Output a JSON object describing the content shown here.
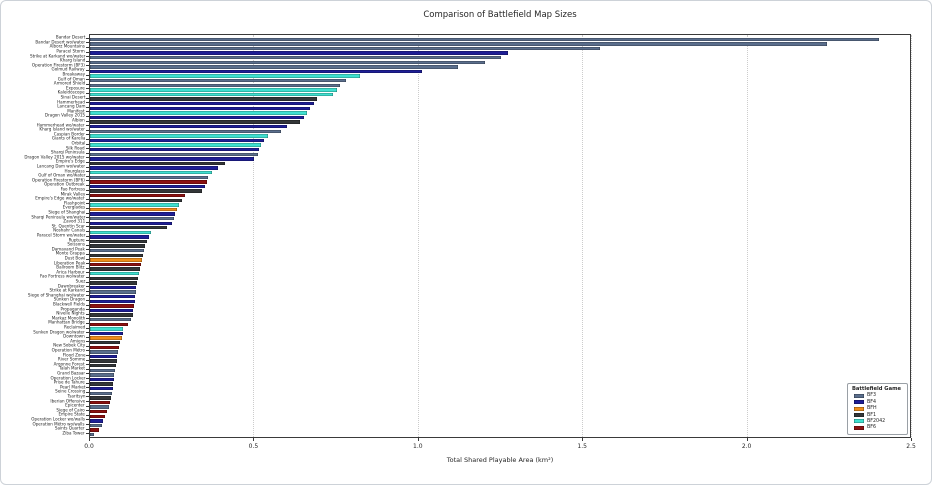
{
  "chart_data": {
    "type": "bar",
    "orientation": "horizontal",
    "title": "Comparison of Battlefield Map Sizes",
    "xlabel": "Total Shared Playable Area (km²)",
    "xlim": [
      0,
      2.5
    ],
    "xticks": [
      0.0,
      0.5,
      1.0,
      1.5,
      2.0,
      2.5
    ],
    "xtick_labels": [
      "0.0",
      "0.5",
      "1.0",
      "1.5",
      "2.0",
      "2.5"
    ],
    "grid": "vertical-dotted",
    "legend": {
      "title": "Battlefield Game",
      "position": "lower right",
      "entries": [
        {
          "label": "BF3",
          "color": "#5A6E8C"
        },
        {
          "label": "BF4",
          "color": "#1E1E96"
        },
        {
          "label": "BFH",
          "color": "#EF8E1B"
        },
        {
          "label": "BF1",
          "color": "#333638"
        },
        {
          "label": "BF2042",
          "color": "#40E0D0"
        },
        {
          "label": "BF6",
          "color": "#8B1010"
        }
      ]
    },
    "bars": [
      {
        "label": "Bandar Desert",
        "game": "BF3",
        "value": 2.4
      },
      {
        "label": "Bandar Desert wo/water",
        "game": "BF3",
        "value": 2.24
      },
      {
        "label": "Alborz Mountains",
        "game": "BF3",
        "value": 1.55
      },
      {
        "label": "Paracel Storm",
        "game": "BF4",
        "value": 1.27
      },
      {
        "label": "Strike at Karkand wo/water",
        "game": "BF3",
        "value": 1.25
      },
      {
        "label": "Kharg Island",
        "game": "BF3",
        "value": 1.2
      },
      {
        "label": "Operation Firestorm (BF3)",
        "game": "BF3",
        "value": 1.12
      },
      {
        "label": "Golmud Railway",
        "game": "BF4",
        "value": 1.01
      },
      {
        "label": "Breakaway",
        "game": "BF2042",
        "value": 0.82
      },
      {
        "label": "Gulf of Oman",
        "game": "BF3",
        "value": 0.78
      },
      {
        "label": "Armored Shield",
        "game": "BF3",
        "value": 0.76
      },
      {
        "label": "Exposure",
        "game": "BF2042",
        "value": 0.75
      },
      {
        "label": "Kaleidoscope",
        "game": "BF2042",
        "value": 0.74
      },
      {
        "label": "Sinai Desert",
        "game": "BF1",
        "value": 0.69
      },
      {
        "label": "Hammerhead",
        "game": "BF4",
        "value": 0.68
      },
      {
        "label": "Lancang Dam",
        "game": "BF4",
        "value": 0.67
      },
      {
        "label": "Manifest",
        "game": "BF2042",
        "value": 0.66
      },
      {
        "label": "Dragon Valley 2015",
        "game": "BF4",
        "value": 0.65
      },
      {
        "label": "Albion",
        "game": "BF1",
        "value": 0.64
      },
      {
        "label": "Hammerhead wo/water",
        "game": "BF4",
        "value": 0.6
      },
      {
        "label": "Kharg Island wo/water",
        "game": "BF3",
        "value": 0.58
      },
      {
        "label": "Caspian Border",
        "game": "BF2042",
        "value": 0.54
      },
      {
        "label": "Giants of Karelia",
        "game": "BF4",
        "value": 0.53
      },
      {
        "label": "Orbital",
        "game": "BF2042",
        "value": 0.52
      },
      {
        "label": "Silk Road",
        "game": "BF4",
        "value": 0.515
      },
      {
        "label": "Sharqi Peninsula",
        "game": "BF3",
        "value": 0.51
      },
      {
        "label": "Dragon Valley 2015 wo/water",
        "game": "BF4",
        "value": 0.5
      },
      {
        "label": "Empire's Edge",
        "game": "BF1",
        "value": 0.41
      },
      {
        "label": "Lancang Dam wo/water",
        "game": "BF4",
        "value": 0.39
      },
      {
        "label": "Hourglass",
        "game": "BF2042",
        "value": 0.37
      },
      {
        "label": "Gulf of Oman wo/water",
        "game": "BF3",
        "value": 0.36
      },
      {
        "label": "Operation Firestorm (BF6)",
        "game": "BF6",
        "value": 0.355
      },
      {
        "label": "Operation Outbreak",
        "game": "BF4",
        "value": 0.35
      },
      {
        "label": "Fao Fortress",
        "game": "BF1",
        "value": 0.34
      },
      {
        "label": "Mirak Valley",
        "game": "BF6",
        "value": 0.29
      },
      {
        "label": "Empire's Edge wo/water",
        "game": "BF1",
        "value": 0.28
      },
      {
        "label": "Flashpoint",
        "game": "BF2042",
        "value": 0.27
      },
      {
        "label": "Everglades",
        "game": "BFH",
        "value": 0.265
      },
      {
        "label": "Siege of Shanghai",
        "game": "BF4",
        "value": 0.26
      },
      {
        "label": "Sharqi Peninsula wo/water",
        "game": "BF3",
        "value": 0.255
      },
      {
        "label": "Zavod 311",
        "game": "BF4",
        "value": 0.25
      },
      {
        "label": "St. Quentin Scar",
        "game": "BF1",
        "value": 0.235
      },
      {
        "label": "Noshahr Canals",
        "game": "BF2042",
        "value": 0.185
      },
      {
        "label": "Paracel Storm wo/water",
        "game": "BF4",
        "value": 0.178
      },
      {
        "label": "Rupture",
        "game": "BF1",
        "value": 0.172
      },
      {
        "label": "Soissons",
        "game": "BF1",
        "value": 0.168
      },
      {
        "label": "Damavand Peak",
        "game": "BF3",
        "value": 0.165
      },
      {
        "label": "Monte Grappa",
        "game": "BF1",
        "value": 0.162
      },
      {
        "label": "Dust Bowl",
        "game": "BFH",
        "value": 0.158
      },
      {
        "label": "Liberation Peak",
        "game": "BF6",
        "value": 0.155
      },
      {
        "label": "Ballroom Blitz",
        "game": "BF1",
        "value": 0.152
      },
      {
        "label": "Arica Harbour",
        "game": "BF2042",
        "value": 0.148
      },
      {
        "label": "Fao Fortress wo/water",
        "game": "BF1",
        "value": 0.146
      },
      {
        "label": "Suez",
        "game": "BF1",
        "value": 0.143
      },
      {
        "label": "Dawnbreaker",
        "game": "BF4",
        "value": 0.141
      },
      {
        "label": "Strike at Karkand",
        "game": "BF3",
        "value": 0.139
      },
      {
        "label": "Siege of Shanghai wo/water",
        "game": "BF4",
        "value": 0.137
      },
      {
        "label": "Sunken Dragon",
        "game": "BF4",
        "value": 0.136
      },
      {
        "label": "Blackwell Fields",
        "game": "BF6",
        "value": 0.134
      },
      {
        "label": "Propaganda",
        "game": "BF4",
        "value": 0.132
      },
      {
        "label": "Nivelle Nights",
        "game": "BF1",
        "value": 0.131
      },
      {
        "label": "Markaz Monolith",
        "game": "BF3",
        "value": 0.126
      },
      {
        "label": "Manhattan Bridge",
        "game": "BF6",
        "value": 0.117
      },
      {
        "label": "Reclaimed",
        "game": "BF2042",
        "value": 0.101
      },
      {
        "label": "Sunken Dragon wo/water",
        "game": "BF4",
        "value": 0.099
      },
      {
        "label": "Downtown",
        "game": "BFH",
        "value": 0.096
      },
      {
        "label": "Amiens",
        "game": "BF1",
        "value": 0.092
      },
      {
        "label": "New Sobek City",
        "game": "BF6",
        "value": 0.089
      },
      {
        "label": "Operation Métro",
        "game": "BF3",
        "value": 0.086
      },
      {
        "label": "Flood Zone",
        "game": "BF4",
        "value": 0.083
      },
      {
        "label": "River Somme",
        "game": "BF1",
        "value": 0.081
      },
      {
        "label": "Argonne Forest",
        "game": "BF1",
        "value": 0.079
      },
      {
        "label": "Talah Market",
        "game": "BF3",
        "value": 0.076
      },
      {
        "label": "Grand Bazaar",
        "game": "BF3",
        "value": 0.074
      },
      {
        "label": "Operation Locker",
        "game": "BF4",
        "value": 0.073
      },
      {
        "label": "Prise de Tahure",
        "game": "BF1",
        "value": 0.071
      },
      {
        "label": "Pearl Market",
        "game": "BF4",
        "value": 0.069
      },
      {
        "label": "Seine Crossing",
        "game": "BF3",
        "value": 0.066
      },
      {
        "label": "Tsaritsyn",
        "game": "BF1",
        "value": 0.063
      },
      {
        "label": "Iberian Offensive",
        "game": "BF6",
        "value": 0.06
      },
      {
        "label": "Epicenter",
        "game": "BF3",
        "value": 0.057
      },
      {
        "label": "Siege of Cairo",
        "game": "BF6",
        "value": 0.052
      },
      {
        "label": "Empire State",
        "game": "BF6",
        "value": 0.046
      },
      {
        "label": "Operation Locker wo/walls",
        "game": "BF4",
        "value": 0.041
      },
      {
        "label": "Operation Métro wo/walls",
        "game": "BF3",
        "value": 0.038
      },
      {
        "label": "Saints Quarter",
        "game": "BF6",
        "value": 0.028
      },
      {
        "label": "Ziba Tower",
        "game": "BF3",
        "value": 0.012
      }
    ]
  }
}
